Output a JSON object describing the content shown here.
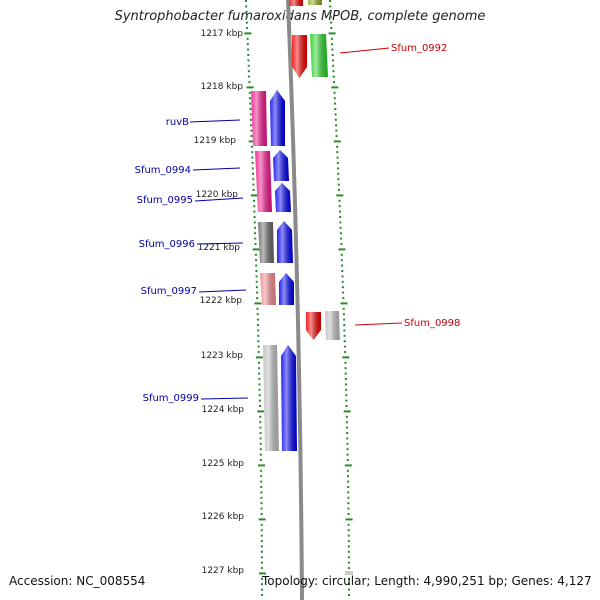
{
  "title": "Syntrophobacter fumaroxidans MPOB, complete genome",
  "footer": {
    "accession": "Accession: NC_008554",
    "stats": "Topology: circular; Length: 4,990,251 bp; Genes: 4,127"
  },
  "scale_labels": [
    "1217 kbp",
    "1218 kbp",
    "1219 kbp",
    "1220 kbp",
    "1221 kbp",
    "1222 kbp",
    "1223 kbp",
    "1224 kbp",
    "1225 kbp",
    "1226 kbp",
    "1227 kbp"
  ],
  "gene_labels": [
    {
      "id": "ruvb",
      "text": "ruvB",
      "color": "#0000aa"
    },
    {
      "id": "sfum-0994",
      "text": "Sfum_0994",
      "color": "#0000aa"
    },
    {
      "id": "sfum-0995",
      "text": "Sfum_0995",
      "color": "#0000aa"
    },
    {
      "id": "sfum-0996",
      "text": "Sfum_0996",
      "color": "#0000aa"
    },
    {
      "id": "sfum-0997",
      "text": "Sfum_0997",
      "color": "#0000aa"
    },
    {
      "id": "sfum-0999",
      "text": "Sfum_0999",
      "color": "#0000aa"
    },
    {
      "id": "sfum-0992",
      "text": "Sfum_0992",
      "color": "#cc0000"
    },
    {
      "id": "sfum-0998",
      "text": "Sfum_0998",
      "color": "#cc0000"
    }
  ],
  "colors": {
    "scale_tick": "#2a8a2a",
    "backbone": "#8a8a8a",
    "blue": "#0000ee",
    "magenta": "#ee1188",
    "red": "#ee0000",
    "green": "#22cc22",
    "olive": "#88aa22",
    "dark_gray": "#666666",
    "light_gray": "#bbbbbb",
    "pink": "#ee8888"
  }
}
